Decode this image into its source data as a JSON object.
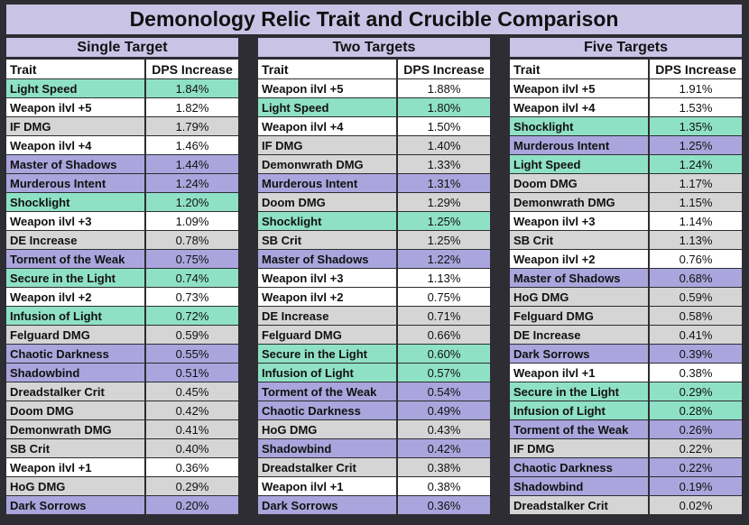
{
  "title": "Demonology Relic Trait and Crucible Comparison",
  "colors": {
    "header": "#c9c3e6",
    "green": "#8fe1c6",
    "white": "#ffffff",
    "gray": "#d5d5d5",
    "purple": "#aaa5dc",
    "border": "#2d2d33"
  },
  "columns": {
    "trait": "Trait",
    "dps": "DPS Increase"
  },
  "chart_data": {
    "type": "table",
    "title": "Demonology Relic Trait and Crucible Comparison",
    "tables": [
      {
        "name": "Single Target",
        "rows": [
          {
            "trait": "Light Speed",
            "dps": "1.84%",
            "color": "green"
          },
          {
            "trait": "Weapon ilvl +5",
            "dps": "1.82%",
            "color": "white"
          },
          {
            "trait": "IF DMG",
            "dps": "1.79%",
            "color": "gray"
          },
          {
            "trait": "Weapon ilvl +4",
            "dps": "1.46%",
            "color": "white"
          },
          {
            "trait": "Master of Shadows",
            "dps": "1.44%",
            "color": "purple"
          },
          {
            "trait": "Murderous Intent",
            "dps": "1.24%",
            "color": "purple"
          },
          {
            "trait": "Shocklight",
            "dps": "1.20%",
            "color": "green"
          },
          {
            "trait": "Weapon ilvl +3",
            "dps": "1.09%",
            "color": "white"
          },
          {
            "trait": "DE Increase",
            "dps": "0.78%",
            "color": "gray"
          },
          {
            "trait": "Torment of the Weak",
            "dps": "0.75%",
            "color": "purple"
          },
          {
            "trait": "Secure in the Light",
            "dps": "0.74%",
            "color": "green"
          },
          {
            "trait": "Weapon ilvl +2",
            "dps": "0.73%",
            "color": "white"
          },
          {
            "trait": "Infusion of Light",
            "dps": "0.72%",
            "color": "green"
          },
          {
            "trait": "Felguard DMG",
            "dps": "0.59%",
            "color": "gray"
          },
          {
            "trait": "Chaotic Darkness",
            "dps": "0.55%",
            "color": "purple"
          },
          {
            "trait": "Shadowbind",
            "dps": "0.51%",
            "color": "purple"
          },
          {
            "trait": "Dreadstalker Crit",
            "dps": "0.45%",
            "color": "gray"
          },
          {
            "trait": "Doom DMG",
            "dps": "0.42%",
            "color": "gray"
          },
          {
            "trait": "Demonwrath DMG",
            "dps": "0.41%",
            "color": "gray"
          },
          {
            "trait": "SB Crit",
            "dps": "0.40%",
            "color": "gray"
          },
          {
            "trait": "Weapon ilvl +1",
            "dps": "0.36%",
            "color": "white"
          },
          {
            "trait": "HoG DMG",
            "dps": "0.29%",
            "color": "gray"
          },
          {
            "trait": "Dark Sorrows",
            "dps": "0.20%",
            "color": "purple"
          }
        ]
      },
      {
        "name": "Two Targets",
        "rows": [
          {
            "trait": "Weapon ilvl +5",
            "dps": "1.88%",
            "color": "white"
          },
          {
            "trait": "Light Speed",
            "dps": "1.80%",
            "color": "green"
          },
          {
            "trait": "Weapon ilvl +4",
            "dps": "1.50%",
            "color": "white"
          },
          {
            "trait": "IF DMG",
            "dps": "1.40%",
            "color": "gray"
          },
          {
            "trait": "Demonwrath DMG",
            "dps": "1.33%",
            "color": "gray"
          },
          {
            "trait": "Murderous Intent",
            "dps": "1.31%",
            "color": "purple"
          },
          {
            "trait": "Doom DMG",
            "dps": "1.29%",
            "color": "gray"
          },
          {
            "trait": "Shocklight",
            "dps": "1.25%",
            "color": "green"
          },
          {
            "trait": "SB Crit",
            "dps": "1.25%",
            "color": "gray"
          },
          {
            "trait": "Master of Shadows",
            "dps": "1.22%",
            "color": "purple"
          },
          {
            "trait": "Weapon ilvl +3",
            "dps": "1.13%",
            "color": "white"
          },
          {
            "trait": "Weapon ilvl +2",
            "dps": "0.75%",
            "color": "white"
          },
          {
            "trait": "DE Increase",
            "dps": "0.71%",
            "color": "gray"
          },
          {
            "trait": "Felguard DMG",
            "dps": "0.66%",
            "color": "gray"
          },
          {
            "trait": "Secure in the Light",
            "dps": "0.60%",
            "color": "green"
          },
          {
            "trait": "Infusion of Light",
            "dps": "0.57%",
            "color": "green"
          },
          {
            "trait": "Torment of the Weak",
            "dps": "0.54%",
            "color": "purple"
          },
          {
            "trait": "Chaotic Darkness",
            "dps": "0.49%",
            "color": "purple"
          },
          {
            "trait": "HoG DMG",
            "dps": "0.43%",
            "color": "gray"
          },
          {
            "trait": "Shadowbind",
            "dps": "0.42%",
            "color": "purple"
          },
          {
            "trait": "Dreadstalker Crit",
            "dps": "0.38%",
            "color": "gray"
          },
          {
            "trait": "Weapon ilvl +1",
            "dps": "0.38%",
            "color": "white"
          },
          {
            "trait": "Dark Sorrows",
            "dps": "0.36%",
            "color": "purple"
          }
        ]
      },
      {
        "name": "Five Targets",
        "rows": [
          {
            "trait": "Weapon ilvl +5",
            "dps": "1.91%",
            "color": "white"
          },
          {
            "trait": "Weapon ilvl +4",
            "dps": "1.53%",
            "color": "white"
          },
          {
            "trait": "Shocklight",
            "dps": "1.35%",
            "color": "green"
          },
          {
            "trait": "Murderous Intent",
            "dps": "1.25%",
            "color": "purple"
          },
          {
            "trait": "Light Speed",
            "dps": "1.24%",
            "color": "green"
          },
          {
            "trait": "Doom DMG",
            "dps": "1.17%",
            "color": "gray"
          },
          {
            "trait": "Demonwrath DMG",
            "dps": "1.15%",
            "color": "gray"
          },
          {
            "trait": "Weapon ilvl +3",
            "dps": "1.14%",
            "color": "white"
          },
          {
            "trait": "SB Crit",
            "dps": "1.13%",
            "color": "gray"
          },
          {
            "trait": "Weapon ilvl +2",
            "dps": "0.76%",
            "color": "white"
          },
          {
            "trait": "Master of Shadows",
            "dps": "0.68%",
            "color": "purple"
          },
          {
            "trait": "HoG DMG",
            "dps": "0.59%",
            "color": "gray"
          },
          {
            "trait": "Felguard DMG",
            "dps": "0.58%",
            "color": "gray"
          },
          {
            "trait": "DE Increase",
            "dps": "0.41%",
            "color": "gray"
          },
          {
            "trait": "Dark Sorrows",
            "dps": "0.39%",
            "color": "purple"
          },
          {
            "trait": "Weapon ilvl +1",
            "dps": "0.38%",
            "color": "white"
          },
          {
            "trait": "Secure in the Light",
            "dps": "0.29%",
            "color": "green"
          },
          {
            "trait": "Infusion of Light",
            "dps": "0.28%",
            "color": "green"
          },
          {
            "trait": "Torment of the Weak",
            "dps": "0.26%",
            "color": "purple"
          },
          {
            "trait": "IF DMG",
            "dps": "0.22%",
            "color": "gray"
          },
          {
            "trait": "Chaotic Darkness",
            "dps": "0.22%",
            "color": "purple"
          },
          {
            "trait": "Shadowbind",
            "dps": "0.19%",
            "color": "purple"
          },
          {
            "trait": "Dreadstalker Crit",
            "dps": "0.02%",
            "color": "gray"
          }
        ]
      }
    ]
  }
}
